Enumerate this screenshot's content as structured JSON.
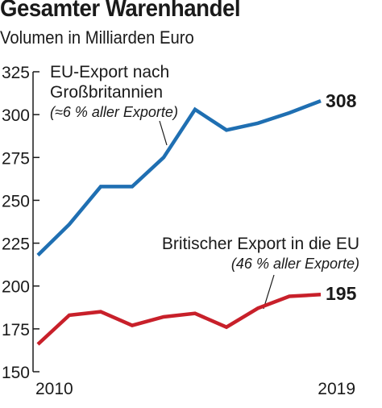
{
  "chart_data": {
    "type": "line",
    "title": "Gesamter Warenhandel",
    "subtitle": "Volumen in Milliarden Euro",
    "x": [
      2010,
      2011,
      2012,
      2013,
      2014,
      2015,
      2016,
      2017,
      2018,
      2019
    ],
    "x_tick_labels": [
      "2010",
      "2019"
    ],
    "y_ticks": [
      150,
      175,
      200,
      225,
      250,
      275,
      300,
      325
    ],
    "ylim": [
      150,
      325
    ],
    "grid": false,
    "series": [
      {
        "name": "EU-Export nach Großbritannien",
        "note": "(≈6 % aller Exporte)",
        "color": "#1f6fb2",
        "values": [
          218,
          236,
          258,
          258,
          275,
          303,
          291,
          295,
          301,
          308
        ],
        "end_label": "308"
      },
      {
        "name": "Britischer Export in die EU",
        "note": "(46 % aller Exporte)",
        "color": "#c8202a",
        "values": [
          166,
          183,
          185,
          177,
          182,
          184,
          176,
          187,
          194,
          195
        ],
        "end_label": "195"
      }
    ]
  }
}
